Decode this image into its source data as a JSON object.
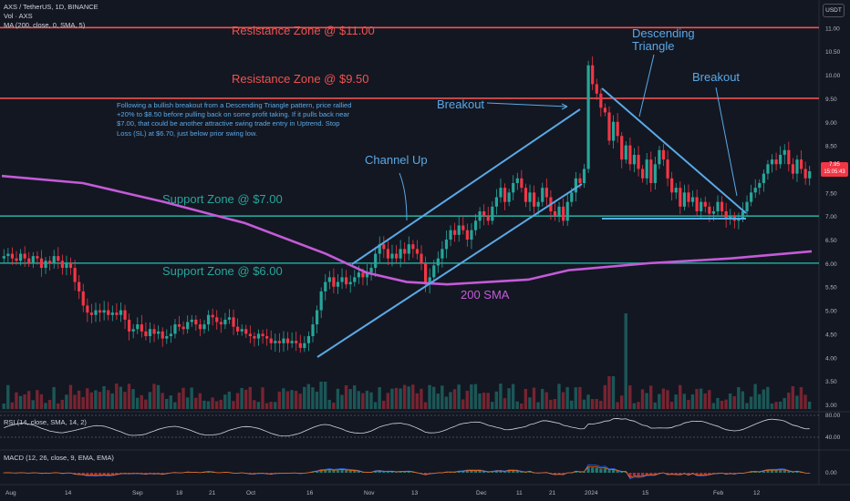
{
  "header": {
    "symbol_line": "AXS / TetherUS, 1D, BINANCE",
    "vol_line": "Vol · AXS",
    "ma_line": "MA (200, close, 0, SMA, 5)"
  },
  "currency_button": "USDT",
  "price_tag": {
    "price": "7.95",
    "timer": "15:05:43",
    "color": "#f23645"
  },
  "colors": {
    "up": "#26a69a",
    "down": "#f23645",
    "sma": "#c45bd8",
    "annotation": "#5aa9e6",
    "support": "#26a69a",
    "resistance": "#ef5350",
    "background": "#131722"
  },
  "annotation_note": "Following a bullish breakout from a Descending Triangle pattern, price rallied +20% to $8.50 before pulling back on some profit taking. If it pulls back near $7.00, that could be another attractive swing trade entry in Uptrend. Stop Loss (SL) at $6.70, just below prior swing low.",
  "annotations": {
    "channel_up": "Channel Up",
    "breakout_1": "Breakout",
    "descending_triangle_1": "Descending",
    "descending_triangle_2": "Triangle",
    "breakout_2": "Breakout",
    "sma_label": "200 SMA"
  },
  "chart_data": {
    "type": "candlestick",
    "title": "AXS / TetherUS, 1D, BINANCE",
    "price_axis_ticks": [
      "11.00",
      "10.50",
      "10.00",
      "9.50",
      "9.00",
      "8.50",
      "8.00",
      "7.50",
      "7.00",
      "6.50",
      "6.00",
      "5.50",
      "5.00",
      "4.50",
      "4.00",
      "3.50",
      "3.00"
    ],
    "ylim": [
      3.0,
      11.2
    ],
    "time_axis_labels": [
      "Aug",
      "14",
      "Sep",
      "18",
      "21",
      "Oct",
      "16",
      "Nov",
      "13",
      "Dec",
      "11",
      "21",
      "2024",
      "15",
      "Feb",
      "12"
    ],
    "zones": [
      {
        "label": "Resistance Zone @ $11.00",
        "value": 11.0,
        "kind": "resistance"
      },
      {
        "label": "Resistance Zone @ $9.50",
        "value": 9.5,
        "kind": "resistance"
      },
      {
        "label": "Support Zone @ $7.00",
        "value": 7.0,
        "kind": "support"
      },
      {
        "label": "Support Zone @ $6.00",
        "value": 6.0,
        "kind": "support"
      }
    ],
    "candle_closes": [
      6.15,
      6.2,
      6.1,
      6.05,
      6.2,
      6.1,
      6.0,
      6.15,
      6.1,
      5.9,
      6.05,
      6.0,
      6.15,
      6.05,
      5.9,
      6.0,
      5.9,
      5.6,
      5.4,
      5.1,
      4.95,
      4.9,
      5.0,
      4.95,
      5.0,
      4.9,
      4.95,
      4.9,
      5.0,
      4.8,
      4.55,
      4.6,
      4.7,
      4.55,
      4.45,
      4.6,
      4.5,
      4.55,
      4.4,
      4.45,
      4.5,
      4.7,
      4.65,
      4.6,
      4.75,
      4.8,
      4.7,
      4.6,
      4.7,
      4.9,
      4.85,
      4.75,
      4.7,
      4.8,
      4.85,
      4.65,
      4.55,
      4.6,
      4.5,
      4.45,
      4.4,
      4.5,
      4.45,
      4.4,
      4.3,
      4.35,
      4.3,
      4.4,
      4.3,
      4.35,
      4.3,
      4.2,
      4.3,
      4.45,
      4.7,
      5.0,
      5.4,
      5.6,
      5.7,
      5.5,
      5.6,
      5.7,
      5.55,
      5.6,
      5.7,
      5.8,
      5.7,
      5.8,
      5.9,
      6.2,
      6.4,
      6.3,
      6.1,
      6.2,
      6.1,
      6.3,
      6.2,
      6.4,
      6.3,
      6.2,
      6.0,
      5.55,
      5.7,
      5.95,
      6.1,
      6.3,
      6.5,
      6.7,
      6.6,
      6.8,
      6.7,
      6.5,
      6.7,
      6.9,
      7.1,
      7.0,
      6.9,
      7.2,
      7.4,
      7.6,
      7.3,
      7.5,
      7.7,
      7.8,
      7.6,
      7.3,
      7.5,
      7.2,
      7.3,
      7.6,
      7.4,
      7.1,
      7.0,
      7.2,
      6.9,
      7.3,
      7.5,
      7.8,
      7.7,
      8.0,
      10.2,
      9.8,
      9.6,
      9.3,
      9.2,
      8.6,
      9.0,
      8.7,
      8.2,
      8.5,
      8.1,
      8.3,
      8.0,
      7.8,
      8.2,
      7.7,
      8.1,
      8.4,
      8.2,
      7.8,
      7.5,
      7.6,
      7.2,
      7.5,
      7.3,
      7.4,
      7.1,
      7.3,
      7.2,
      7.05,
      7.1,
      7.3,
      7.1,
      6.95,
      7.0,
      6.9,
      6.95,
      7.1,
      7.3,
      7.5,
      7.6,
      7.7,
      7.9,
      8.1,
      8.2,
      8.1,
      8.3,
      8.4,
      8.1,
      7.9,
      8.2,
      8.0,
      7.8,
      7.95
    ],
    "sma_200": [
      [
        0,
        7.85
      ],
      [
        0.1,
        7.7
      ],
      [
        0.2,
        7.3
      ],
      [
        0.3,
        6.85
      ],
      [
        0.4,
        6.2
      ],
      [
        0.45,
        5.8
      ],
      [
        0.5,
        5.6
      ],
      [
        0.55,
        5.55
      ],
      [
        0.6,
        5.6
      ],
      [
        0.65,
        5.65
      ],
      [
        0.7,
        5.85
      ],
      [
        0.8,
        6.0
      ],
      [
        0.9,
        6.1
      ],
      [
        1.0,
        6.25
      ]
    ],
    "volume_ticks": [],
    "rsi": {
      "label": "RSI (14, close, SMA, 14, 2)",
      "ticks": [
        "80.00",
        "40.00"
      ]
    },
    "macd": {
      "label": "MACD (12, 26, close, 9, EMA, EMA)",
      "ticks": [
        "0.00"
      ]
    }
  }
}
